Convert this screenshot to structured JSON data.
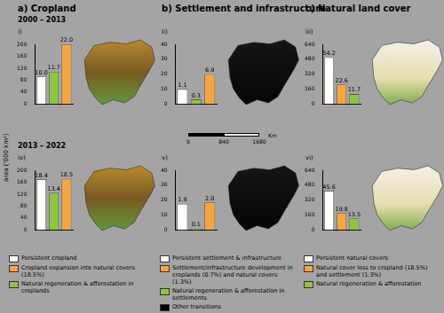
{
  "columns": [
    "a) Cropland",
    "b) Settlement and infrastructure",
    "c) Natural land cover"
  ],
  "periods": [
    "2000 – 2013",
    "2013 – 2022"
  ],
  "y_axis_label": "area ('000 km²)",
  "scale_bar": {
    "ticks": [
      0,
      840,
      1680
    ],
    "unit": "Km"
  },
  "legends": [
    [
      {
        "name": "Persistent cropland",
        "color": "#ffffff"
      },
      {
        "name": "Cropland expansion into natural covers (18.5%)",
        "color": "#f7a541"
      },
      {
        "name": "Natural regeneration & afforestation in croplands",
        "color": "#8dc63f"
      }
    ],
    [
      {
        "name": "Persistent settlement & infrastructure",
        "color": "#ffffff"
      },
      {
        "name": "Settlement/infrastructure development in croplands (0.7%) and natural covers (1.3%)",
        "color": "#f7a541"
      },
      {
        "name": "Natural regeneration & afforestation in settlements",
        "color": "#8dc63f"
      },
      {
        "name": "Other transitions",
        "color": "#000000"
      }
    ],
    [
      {
        "name": "Persistent natural covers",
        "color": "#ffffff"
      },
      {
        "name": "Natural cover loss to cropland (18.5%) and settlement (1.3%)",
        "color": "#f7a541"
      },
      {
        "name": "Natural regeneration & afforestation",
        "color": "#8dc63f"
      }
    ]
  ],
  "chart_data": [
    {
      "type": "bar",
      "panel": "i)",
      "categories": [
        null,
        null,
        null
      ],
      "values": [
        92,
        108,
        200
      ],
      "share_labels": [
        "10.0",
        "11.7",
        "22.0"
      ],
      "colors": [
        "#ffffff",
        "#8dc63f",
        "#f7a541"
      ],
      "ylim": [
        0,
        200
      ],
      "yticks": [
        0,
        40,
        80,
        120,
        160,
        200
      ],
      "grid": false,
      "tick_labels": "y"
    },
    {
      "type": "bar",
      "panel": "ii)",
      "categories": [
        null,
        null,
        null
      ],
      "values": [
        10,
        3,
        20
      ],
      "share_labels": [
        "1.1",
        "0.3",
        "6.9"
      ],
      "colors": [
        "#ffffff",
        "#8dc63f",
        "#f7a541"
      ],
      "ylim": [
        0,
        40
      ],
      "yticks": [
        0,
        10,
        20,
        30,
        40
      ],
      "grid": false,
      "tick_labels": "y"
    },
    {
      "type": "bar",
      "panel": "iii)",
      "categories": [
        null,
        null,
        null
      ],
      "values": [
        500,
        209,
        108
      ],
      "share_labels": [
        "54.2",
        "22.6",
        "11.7"
      ],
      "colors": [
        "#ffffff",
        "#f7a541",
        "#8dc63f"
      ],
      "ylim": [
        0,
        640
      ],
      "yticks": [
        0,
        160,
        320,
        480,
        640
      ],
      "grid": false,
      "tick_labels": "y"
    },
    {
      "type": "bar",
      "panel": "iv)",
      "categories": [
        null,
        null,
        null
      ],
      "values": [
        170,
        124,
        171
      ],
      "share_labels": [
        "18.4",
        "13.4",
        "18.5"
      ],
      "colors": [
        "#ffffff",
        "#8dc63f",
        "#f7a541"
      ],
      "ylim": [
        0,
        200
      ],
      "yticks": [
        0,
        40,
        80,
        120,
        160,
        200
      ],
      "grid": false,
      "tick_labels": "y"
    },
    {
      "type": "bar",
      "panel": "v)",
      "categories": [
        null,
        null,
        null
      ],
      "values": [
        17.5,
        1,
        18.5
      ],
      "share_labels": [
        "1.9",
        "0.1",
        "2.0"
      ],
      "colors": [
        "#ffffff",
        "#8dc63f",
        "#f7a541"
      ],
      "ylim": [
        0,
        40
      ],
      "yticks": [
        0,
        10,
        20,
        30,
        40
      ],
      "grid": false,
      "tick_labels": "y"
    },
    {
      "type": "bar",
      "panel": "vi)",
      "categories": [
        null,
        null,
        null
      ],
      "values": [
        421,
        183,
        125
      ],
      "share_labels": [
        "45.6",
        "19.8",
        "13.5"
      ],
      "colors": [
        "#ffffff",
        "#f7a541",
        "#8dc63f"
      ],
      "ylim": [
        0,
        640
      ],
      "yticks": [
        0,
        160,
        320,
        480,
        640
      ],
      "grid": false,
      "tick_labels": "y"
    }
  ]
}
